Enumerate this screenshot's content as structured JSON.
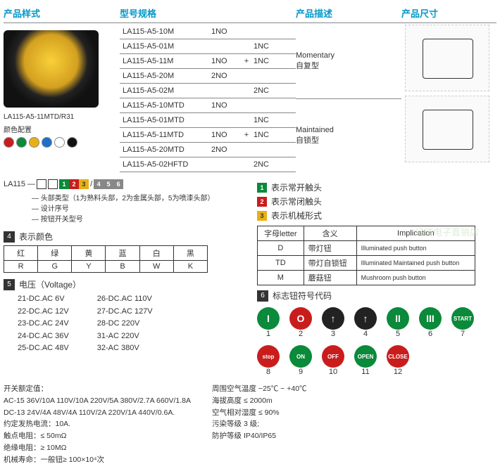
{
  "headers": {
    "h1": "产品样式",
    "h2": "型号规格",
    "h3": "产品描述",
    "h4": "产品尺寸"
  },
  "product": {
    "caption_code": "LA115-A5-11MTD/R31",
    "caption_label": "颜色配置",
    "dots": [
      "#c91d1d",
      "#0a8a3a",
      "#e8b014",
      "#1e6fc9",
      "#ffffff",
      "#111111"
    ]
  },
  "spec_rows": [
    {
      "code": "LA115-A5-10M",
      "c1": "1NO",
      "plus": "",
      "c2": ""
    },
    {
      "code": "LA115-A5-01M",
      "c1": "",
      "plus": "",
      "c2": "1NC"
    },
    {
      "code": "LA115-A5-11M",
      "c1": "1NO",
      "plus": "+",
      "c2": "1NC"
    },
    {
      "code": "LA115-A5-20M",
      "c1": "2NO",
      "plus": "",
      "c2": ""
    },
    {
      "code": "LA115-A5-02M",
      "c1": "",
      "plus": "",
      "c2": "2NC"
    },
    {
      "code": "LA115-A5-10MTD",
      "c1": "1NO",
      "plus": "",
      "c2": ""
    },
    {
      "code": "LA115-A5-01MTD",
      "c1": "",
      "plus": "",
      "c2": "1NC"
    },
    {
      "code": "LA115-A5-11MTD",
      "c1": "1NO",
      "plus": "+",
      "c2": "1NC"
    },
    {
      "code": "LA115-A5-20MTD",
      "c1": "2NO",
      "plus": "",
      "c2": ""
    },
    {
      "code": "LA115-A5-02HFTD",
      "c1": "",
      "plus": "",
      "c2": "2NC"
    }
  ],
  "desc": [
    {
      "en": "Momentary",
      "zh": "自复型"
    },
    {
      "en": "Maintained",
      "zh": "自锁型"
    }
  ],
  "code_prefix": "LA115 —",
  "code_squares": [
    {
      "bg": "#0a8a3a",
      "t": "1"
    },
    {
      "bg": "#c91d1d",
      "t": "2"
    },
    {
      "bg": "#e8b014",
      "t": "3",
      "dark": true
    }
  ],
  "code_squares2": [
    {
      "bg": "#888",
      "t": "4"
    },
    {
      "bg": "#888",
      "t": "5"
    },
    {
      "bg": "#888",
      "t": "6"
    }
  ],
  "bracket": [
    "头部类型（1为熟料头部，2为金属头部，5为喷漆头部）",
    "设计序号",
    "按钮开关型号"
  ],
  "sec4": {
    "num": "4",
    "label": "表示颜色",
    "cols_zh": [
      "红",
      "绿",
      "黄",
      "蓝",
      "白",
      "黑"
    ],
    "cols_en": [
      "R",
      "G",
      "Y",
      "B",
      "W",
      "K"
    ]
  },
  "sec5": {
    "num": "5",
    "label": "电压（Voltage）",
    "left": [
      "21-DC.AC 6V",
      "22-DC.AC 12V",
      "23-DC.AC 24V",
      "24-DC.AC 36V",
      "25-DC.AC 48V"
    ],
    "right": [
      "26-DC.AC 110V",
      "27-DC.AC 127V",
      "28-DC    220V",
      "31-AC    220V",
      "32-AC    380V"
    ]
  },
  "legend": [
    {
      "n": "1",
      "bg": "#0a8a3a",
      "t": "表示常开触头"
    },
    {
      "n": "2",
      "bg": "#c91d1d",
      "t": "表示常闭触头"
    },
    {
      "n": "3",
      "bg": "#e8b014",
      "t": "表示机械形式",
      "dark": true
    }
  ],
  "letter_table": {
    "h1": "字母letter",
    "h2": "含义",
    "h3": "Implication",
    "rows": [
      {
        "l": "D",
        "zh": "带灯钮",
        "en": "Illuminated push button"
      },
      {
        "l": "TD",
        "zh": "带灯自锁钮",
        "en": "Illuminated Maintained push button"
      },
      {
        "l": "M",
        "zh": "蘑菇钮",
        "en": "Mushroom push button"
      }
    ]
  },
  "sec6": {
    "num": "6",
    "label": "标志钮符号代码",
    "symbols": [
      {
        "bg": "#0a8a3a",
        "txt": "I",
        "n": "1"
      },
      {
        "bg": "#c91d1d",
        "txt": "O",
        "n": "2"
      },
      {
        "bg": "#222",
        "txt": "↑",
        "n": "3"
      },
      {
        "bg": "#222",
        "txt": "↑",
        "n": "4",
        "rot": true
      },
      {
        "bg": "#0a8a3a",
        "txt": "II",
        "n": "5"
      },
      {
        "bg": "#0a8a3a",
        "txt": "III",
        "n": "6"
      },
      {
        "bg": "#0a8a3a",
        "txt": "START",
        "n": "7",
        "sm": true
      },
      {
        "bg": "#c91d1d",
        "txt": "stop",
        "n": "8",
        "sm": true
      },
      {
        "bg": "#0a8a3a",
        "txt": "ON",
        "n": "9",
        "sm": true
      },
      {
        "bg": "#c91d1d",
        "txt": "OFF",
        "n": "10",
        "sm": true
      },
      {
        "bg": "#0a8a3a",
        "txt": "OPEN",
        "n": "11",
        "sm": true
      },
      {
        "bg": "#c91d1d",
        "txt": "CLOSE",
        "n": "12",
        "sm": true
      }
    ]
  },
  "bottom_left": {
    "title": "开关额定值：",
    "lines": [
      "AC-15 36V/10A 110V/10A 220V/5A 380V/2.7A 660V/1.8A",
      "DC-13 24V/4A 48V/4A 110V/2A 220V/1A 440V/0.6A.",
      "约定发热电流：10A.",
      "触点电阻：≤ 50mΩ",
      "绝缘电阻：≥ 10MΩ",
      "机械寿命：一般钮≥ 100×10⁴次"
    ]
  },
  "bottom_right": [
    "周围空气温度 −25℃ ~ +40℃",
    "海拔高度 ≤ 2000m",
    "空气相对湿度 ≤ 90%",
    "污染等级 3 级;",
    "防护等级 IP40/IP65"
  ],
  "watermark": "绿波电子直销店",
  "slash": "/"
}
